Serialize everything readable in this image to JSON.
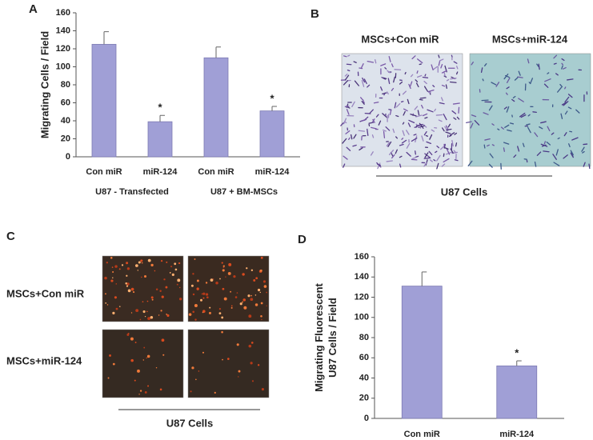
{
  "panel_labels": [
    "A",
    "B",
    "C",
    "D"
  ],
  "panel_b": {
    "columns": [
      "MSCs+Con miR",
      "MSCs+miR-124"
    ],
    "caption": "U87 Cells"
  },
  "panel_c": {
    "rows": [
      "MSCs+Con miR",
      "MSCs+miR-124"
    ],
    "caption": "U87 Cells"
  },
  "chart_data": [
    {
      "type": "bar",
      "ylabel": [
        "Migrating Cells / Field"
      ],
      "categories": [
        "Con miR",
        "miR-124",
        "Con miR",
        "miR-124"
      ],
      "groups": [
        "U87 - Transfected",
        "U87 + BM-MSCs"
      ],
      "values": [
        125,
        39,
        110,
        51
      ],
      "errors": [
        14,
        7,
        12,
        5
      ],
      "significance": [
        null,
        "*",
        null,
        "*"
      ],
      "color": "#a09fd6",
      "ylim": [
        0,
        160
      ],
      "yticks": [
        0,
        20,
        40,
        60,
        80,
        100,
        120,
        140,
        160
      ]
    },
    {
      "type": "bar",
      "ylabel": [
        "Migrating Fluorescent",
        "U87 Cells / Field"
      ],
      "categories": [
        "Con miR",
        "miR-124"
      ],
      "values": [
        131,
        52
      ],
      "errors": [
        14,
        5
      ],
      "significance": [
        null,
        "*"
      ],
      "color": "#a09fd6",
      "ylim": [
        0,
        160
      ],
      "yticks": [
        0,
        20,
        40,
        60,
        80,
        100,
        120,
        140,
        160
      ]
    }
  ]
}
